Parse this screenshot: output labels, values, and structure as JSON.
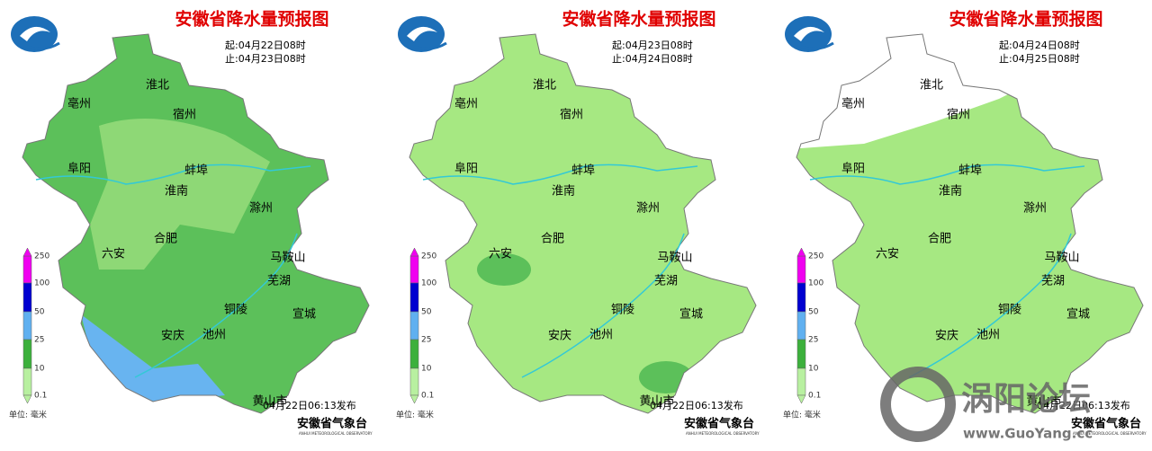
{
  "panels": [
    {
      "title": "安徽省降水量预报图",
      "start": "起:04月22日08时",
      "end": "止:04月23日08时",
      "issued": "04月22日06:13发布"
    },
    {
      "title": "安徽省降水量预报图",
      "start": "起:04月23日08时",
      "end": "止:04月24日08时",
      "issued": "04月22日06:13发布"
    },
    {
      "title": "安徽省降水量预报图",
      "start": "起:04月24日08时",
      "end": "止:04月25日08时",
      "issued": "04月22日06:13发布"
    }
  ],
  "cities": [
    "淮北",
    "宿州",
    "亳州",
    "阜阳",
    "蚌埠",
    "淮南",
    "滁州",
    "合肥",
    "六安",
    "马鞍山",
    "芜湖",
    "铜陵",
    "宣城",
    "安庆",
    "池州",
    "黄山市"
  ],
  "legend": {
    "unit": "单位: 毫米",
    "ticks": [
      "250",
      "100",
      "50",
      "25",
      "10",
      "0.1"
    ]
  },
  "org": "安徽省气象台",
  "org_en": "ANHUI METEOROLOGICAL OBSERVATORY",
  "watermark": {
    "name": "涡阳论坛",
    "url": "www.GuoYang.cc"
  }
}
